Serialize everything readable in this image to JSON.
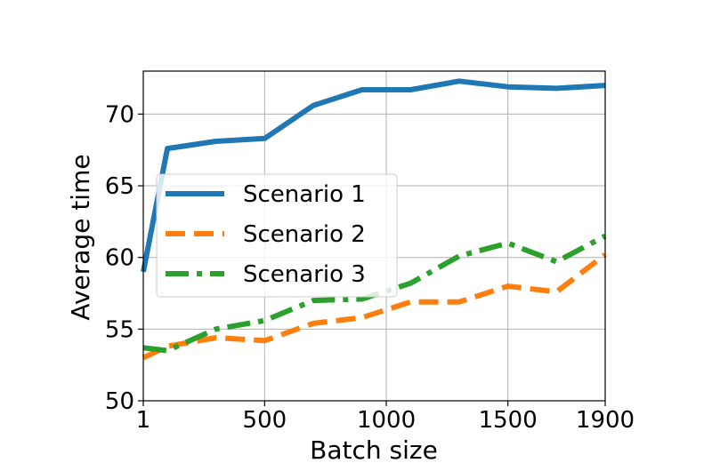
{
  "chart_data": {
    "type": "line",
    "xlabel": "Batch size",
    "ylabel": "Average time",
    "xlim": [
      1,
      1900
    ],
    "ylim": [
      50,
      73
    ],
    "xticks": [
      1,
      500,
      1000,
      1500,
      1900
    ],
    "xtick_labels": [
      "1",
      "500",
      "1000",
      "1500",
      "1900"
    ],
    "yticks": [
      50,
      55,
      60,
      65,
      70
    ],
    "ytick_labels": [
      "50",
      "55",
      "60",
      "65",
      70
    ],
    "grid": true,
    "legend_position": "center-left",
    "x": [
      1,
      100,
      300,
      500,
      700,
      900,
      1100,
      1300,
      1500,
      1700,
      1900
    ],
    "series": [
      {
        "name": "Scenario 1",
        "color": "#1f77b4",
        "dash": "solid",
        "values": [
          59.0,
          67.6,
          68.1,
          68.3,
          70.6,
          71.7,
          71.7,
          72.3,
          71.9,
          71.8,
          72.0
        ]
      },
      {
        "name": "Scenario 2",
        "color": "#ff7f0e",
        "dash": "dashed",
        "values": [
          53.0,
          53.8,
          54.4,
          54.2,
          55.4,
          55.8,
          56.9,
          56.9,
          58.0,
          57.6,
          60.2
        ]
      },
      {
        "name": "Scenario 3",
        "color": "#2ca02c",
        "dash": "dashdot",
        "values": [
          53.7,
          53.5,
          55.0,
          55.6,
          57.0,
          57.1,
          58.2,
          60.1,
          61.0,
          59.7,
          61.5
        ]
      }
    ]
  }
}
